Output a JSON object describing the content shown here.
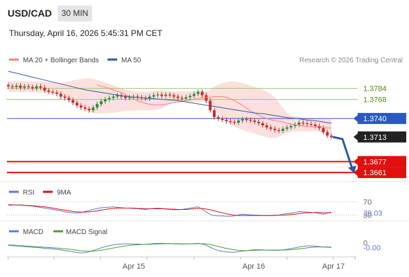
{
  "header": {
    "symbol": "USD/CAD",
    "timeframe": "30 MIN",
    "datetime": "Thursday, April 16, 2026 5:45:31 PM CET"
  },
  "colors": {
    "ma20": "#ff7f7f",
    "ma50": "#2e5a9a",
    "bollinger_fill": "#fbd4d4",
    "candle_up": "#2b8a3e",
    "candle_down": "#c92a2a",
    "resistance": "#9acd6a",
    "pivot": "#2b59c3",
    "support": "#e01010",
    "last_price": "#222222",
    "forecast_arrow": "#2e5a9a",
    "rsi": "#5b7bd5",
    "rsi_ma": "#e01010",
    "macd": "#5b7bd5",
    "macd_signal": "#4aa02c"
  },
  "chart_data": [
    {
      "type": "candlestick",
      "title": "",
      "legend": [
        {
          "name": "MA 20 + Bollinger Bands",
          "color": "#ff7f7f"
        },
        {
          "name": "MA 50",
          "color": "#2e5a9a"
        }
      ],
      "legend_position": "top-left",
      "credit": "Research © 2026 Trading Central",
      "x_tick_labels": [
        "Apr 15",
        "Apr 16",
        "Apr 17"
      ],
      "ylim": [
        1.3652,
        1.3812
      ],
      "levels": [
        {
          "label": "1.3784",
          "value": 1.3784,
          "kind": "resistance"
        },
        {
          "label": "1.3768",
          "value": 1.3768,
          "kind": "resistance"
        },
        {
          "label": "1.3740",
          "value": 1.374,
          "kind": "pivot"
        },
        {
          "label": "1.3713",
          "value": 1.3713,
          "kind": "last"
        },
        {
          "label": "1.3677",
          "value": 1.3677,
          "kind": "support"
        },
        {
          "label": "1.3661",
          "value": 1.3661,
          "kind": "support"
        }
      ],
      "close": [
        1.3787,
        1.3786,
        1.3788,
        1.3785,
        1.3787,
        1.3786,
        1.3784,
        1.3787,
        1.3785,
        1.3781,
        1.3779,
        1.3778,
        1.3776,
        1.3772,
        1.377,
        1.3767,
        1.3763,
        1.3759,
        1.3756,
        1.3754,
        1.3752,
        1.3756,
        1.3761,
        1.3765,
        1.3768,
        1.377,
        1.3772,
        1.3774,
        1.3772,
        1.377,
        1.3771,
        1.3772,
        1.3771,
        1.377,
        1.3769,
        1.3772,
        1.3774,
        1.3775,
        1.3773,
        1.3775,
        1.3774,
        1.3772,
        1.377,
        1.3769,
        1.3771,
        1.3773,
        1.3776,
        1.3779,
        1.3774,
        1.3766,
        1.3752,
        1.3742,
        1.374,
        1.3738,
        1.3736,
        1.3735,
        1.3734,
        1.3737,
        1.3739,
        1.3738,
        1.3737,
        1.3735,
        1.3733,
        1.373,
        1.3727,
        1.3725,
        1.3723,
        1.3722,
        1.3725,
        1.3727,
        1.3729,
        1.3731,
        1.3734,
        1.3733,
        1.3732,
        1.3731,
        1.3729,
        1.3726,
        1.372,
        1.3715,
        1.3713
      ],
      "ma20": [
        1.3789,
        1.3787,
        1.3786,
        1.3784,
        1.3782,
        1.378,
        1.3778,
        1.3775,
        1.3772,
        1.3769,
        1.3766,
        1.3764,
        1.3762,
        1.3761,
        1.376,
        1.376,
        1.376,
        1.3761,
        1.3762,
        1.3763,
        1.3764,
        1.3765,
        1.3766,
        1.3767,
        1.3768,
        1.3769,
        1.377,
        1.3771,
        1.3771,
        1.3772,
        1.3772,
        1.3772,
        1.3771,
        1.3769,
        1.3766,
        1.3763,
        1.3759,
        1.3755,
        1.3751,
        1.3748,
        1.3745,
        1.3742,
        1.374,
        1.3738,
        1.3737,
        1.3736,
        1.3735,
        1.3733,
        1.3732,
        1.3731,
        1.373,
        1.3729,
        1.3728,
        1.3728,
        1.3728,
        1.3728,
        1.3727,
        1.3726,
        1.3726
      ],
      "ma20_start_index": 22,
      "ma50": [
        1.3809,
        1.3806,
        1.3803,
        1.38,
        1.3797,
        1.3794,
        1.3791,
        1.3788,
        1.3785,
        1.3782,
        1.378,
        1.3778,
        1.3776,
        1.3774,
        1.3772,
        1.3771,
        1.377,
        1.3769,
        1.3768,
        1.3767,
        1.3766,
        1.3764,
        1.3762,
        1.376,
        1.3758,
        1.3756,
        1.3754,
        1.3752,
        1.375,
        1.3748,
        1.3747,
        1.3745,
        1.3743,
        1.3741,
        1.374,
        1.3738,
        1.3737,
        1.3735,
        1.3733
      ],
      "ma50_start_index": 0,
      "forecast": {
        "from": 1.3713,
        "to": 1.3661
      }
    },
    {
      "type": "line",
      "legend": [
        {
          "name": "RSI",
          "color": "#5b7bd5"
        },
        {
          "name": "9MA",
          "color": "#e01010"
        }
      ],
      "y_tick_labels": [
        "70",
        "30"
      ],
      "current_label": "39.03",
      "ylim": [
        15,
        85
      ],
      "rsi": [
        62,
        61,
        60,
        61,
        59,
        58,
        57,
        55,
        53,
        51,
        49,
        47,
        45,
        43,
        40,
        38,
        37,
        36,
        38,
        41,
        44,
        47,
        50,
        52,
        53,
        54,
        55,
        53,
        52,
        51,
        51,
        50,
        49,
        48,
        47,
        49,
        50,
        51,
        50,
        48,
        47,
        46,
        46,
        47,
        49,
        51,
        53,
        55,
        48,
        40,
        32,
        29,
        28,
        28,
        27,
        27,
        28,
        31,
        33,
        32,
        31,
        30,
        30,
        29,
        29,
        29,
        30,
        30,
        33,
        35,
        36,
        38,
        41,
        40,
        39,
        38,
        37,
        35,
        33,
        36,
        39
      ],
      "rsi_ma": [
        60,
        60,
        60,
        60,
        59,
        59,
        58,
        57,
        56,
        55,
        53,
        51,
        49,
        47,
        45,
        43,
        41,
        40,
        39,
        39,
        40,
        41,
        43,
        45,
        47,
        49,
        50,
        51,
        51,
        51,
        51,
        51,
        50,
        50,
        49,
        49,
        49,
        49,
        49,
        49,
        48,
        48,
        47,
        47,
        47,
        48,
        49,
        50,
        50,
        48,
        46,
        43,
        40,
        37,
        34,
        32,
        30,
        29,
        29,
        29,
        29,
        29,
        29,
        29,
        29,
        29,
        29,
        30,
        30,
        31,
        32,
        33,
        35,
        36,
        37,
        37,
        38,
        38,
        37,
        37,
        37
      ]
    },
    {
      "type": "line",
      "legend": [
        {
          "name": "MACD",
          "color": "#5b7bd5"
        },
        {
          "name": "MACD Signal",
          "color": "#4aa02c"
        }
      ],
      "y_tick_labels": [
        "0"
      ],
      "current_label": "-0.00",
      "ylim": [
        -1.0,
        0.6
      ],
      "macd": [
        -0.05,
        -0.08,
        -0.1,
        -0.12,
        -0.15,
        -0.18,
        -0.2,
        -0.22,
        -0.25,
        -0.28,
        -0.3,
        -0.32,
        -0.36,
        -0.4,
        -0.45,
        -0.5,
        -0.55,
        -0.6,
        -0.64,
        -0.62,
        -0.55,
        -0.45,
        -0.35,
        -0.25,
        -0.15,
        -0.08,
        -0.02,
        0.02,
        0.05,
        0.06,
        0.06,
        0.05,
        0.04,
        0.02,
        0.02,
        0.05,
        0.08,
        0.1,
        0.1,
        0.09,
        0.08,
        0.06,
        0.05,
        0.04,
        0.05,
        0.06,
        0.08,
        0.1,
        0.05,
        -0.05,
        -0.2,
        -0.35,
        -0.45,
        -0.52,
        -0.56,
        -0.58,
        -0.58,
        -0.55,
        -0.5,
        -0.46,
        -0.42,
        -0.4,
        -0.39,
        -0.4,
        -0.42,
        -0.43,
        -0.44,
        -0.44,
        -0.4,
        -0.36,
        -0.3,
        -0.25,
        -0.18,
        -0.13,
        -0.1,
        -0.1,
        -0.12,
        -0.15,
        -0.18,
        -0.2,
        -0.22
      ],
      "macd_signal": [
        -0.02,
        -0.04,
        -0.06,
        -0.08,
        -0.1,
        -0.12,
        -0.14,
        -0.16,
        -0.18,
        -0.2,
        -0.22,
        -0.24,
        -0.26,
        -0.29,
        -0.32,
        -0.35,
        -0.39,
        -0.43,
        -0.47,
        -0.5,
        -0.51,
        -0.5,
        -0.47,
        -0.43,
        -0.38,
        -0.32,
        -0.26,
        -0.2,
        -0.15,
        -0.1,
        -0.06,
        -0.03,
        -0.01,
        0.01,
        0.02,
        0.03,
        0.04,
        0.05,
        0.06,
        0.07,
        0.07,
        0.07,
        0.07,
        0.06,
        0.06,
        0.06,
        0.06,
        0.07,
        0.07,
        0.05,
        0.01,
        -0.06,
        -0.14,
        -0.22,
        -0.29,
        -0.35,
        -0.4,
        -0.44,
        -0.46,
        -0.46,
        -0.45,
        -0.44,
        -0.43,
        -0.42,
        -0.42,
        -0.42,
        -0.42,
        -0.42,
        -0.42,
        -0.41,
        -0.39,
        -0.36,
        -0.33,
        -0.29,
        -0.25,
        -0.21,
        -0.19,
        -0.18,
        -0.18,
        -0.18,
        -0.19
      ]
    }
  ]
}
